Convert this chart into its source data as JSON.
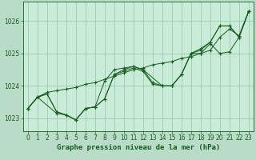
{
  "xlabel": "Graphe pression niveau de la mer (hPa)",
  "background_color": "#b8dcc8",
  "plot_bg_color": "#c8ecd8",
  "grid_color": "#98c4a8",
  "line_color": "#1a5c20",
  "xlim": [
    -0.5,
    23.5
  ],
  "ylim": [
    1022.6,
    1026.6
  ],
  "yticks": [
    1023,
    1024,
    1025,
    1026
  ],
  "xticks": [
    0,
    1,
    2,
    3,
    4,
    5,
    6,
    7,
    8,
    9,
    10,
    11,
    12,
    13,
    14,
    15,
    16,
    17,
    18,
    19,
    20,
    21,
    22,
    23
  ],
  "series": [
    {
      "x": [
        0,
        1,
        2,
        3,
        4,
        5,
        6,
        7,
        8,
        9,
        10,
        11,
        12,
        13,
        14,
        15,
        16,
        17,
        18,
        19,
        20,
        21,
        22,
        23
      ],
      "y": [
        1023.3,
        1023.65,
        1023.8,
        1023.85,
        1023.9,
        1023.95,
        1024.05,
        1024.1,
        1024.2,
        1024.3,
        1024.4,
        1024.5,
        1024.55,
        1024.65,
        1024.7,
        1024.75,
        1024.85,
        1024.9,
        1025.0,
        1025.1,
        1025.5,
        1025.75,
        1025.55,
        1026.3
      ]
    },
    {
      "x": [
        0,
        1,
        2,
        3,
        4,
        5,
        6,
        7,
        8,
        9,
        10,
        11,
        12,
        13,
        14,
        15,
        16,
        17,
        18,
        19,
        20,
        21,
        22,
        23
      ],
      "y": [
        1023.3,
        1023.65,
        1023.75,
        1023.2,
        1023.1,
        1022.95,
        1023.3,
        1023.35,
        1023.6,
        1024.35,
        1024.45,
        1024.55,
        1024.45,
        1024.05,
        1024.0,
        1024.0,
        1024.35,
        1025.0,
        1025.0,
        1025.3,
        1025.0,
        1025.05,
        1025.5,
        1026.3
      ]
    },
    {
      "x": [
        0,
        1,
        2,
        3,
        4,
        5,
        6,
        7,
        8,
        9,
        10,
        11,
        12,
        13,
        14,
        15,
        16,
        17,
        18,
        19,
        20,
        21,
        22,
        23
      ],
      "y": [
        1023.3,
        1023.65,
        1023.75,
        1023.2,
        1023.1,
        1022.95,
        1023.3,
        1023.35,
        1023.6,
        1024.35,
        1024.5,
        1024.6,
        1024.5,
        1024.1,
        1024.0,
        1024.0,
        1024.35,
        1025.0,
        1025.1,
        1025.35,
        1025.85,
        1025.85,
        1025.5,
        1026.3
      ]
    },
    {
      "x": [
        0,
        1,
        3,
        4,
        5,
        6,
        7,
        8,
        9,
        10,
        11,
        12,
        14,
        15,
        16,
        17,
        18,
        19,
        20,
        21,
        22,
        23
      ],
      "y": [
        1023.3,
        1023.65,
        1023.15,
        1023.1,
        1022.95,
        1023.3,
        1023.35,
        1024.15,
        1024.5,
        1024.55,
        1024.6,
        1024.5,
        1024.0,
        1024.0,
        1024.35,
        1025.0,
        1025.15,
        1025.35,
        1025.85,
        1025.85,
        1025.5,
        1026.3
      ]
    }
  ]
}
